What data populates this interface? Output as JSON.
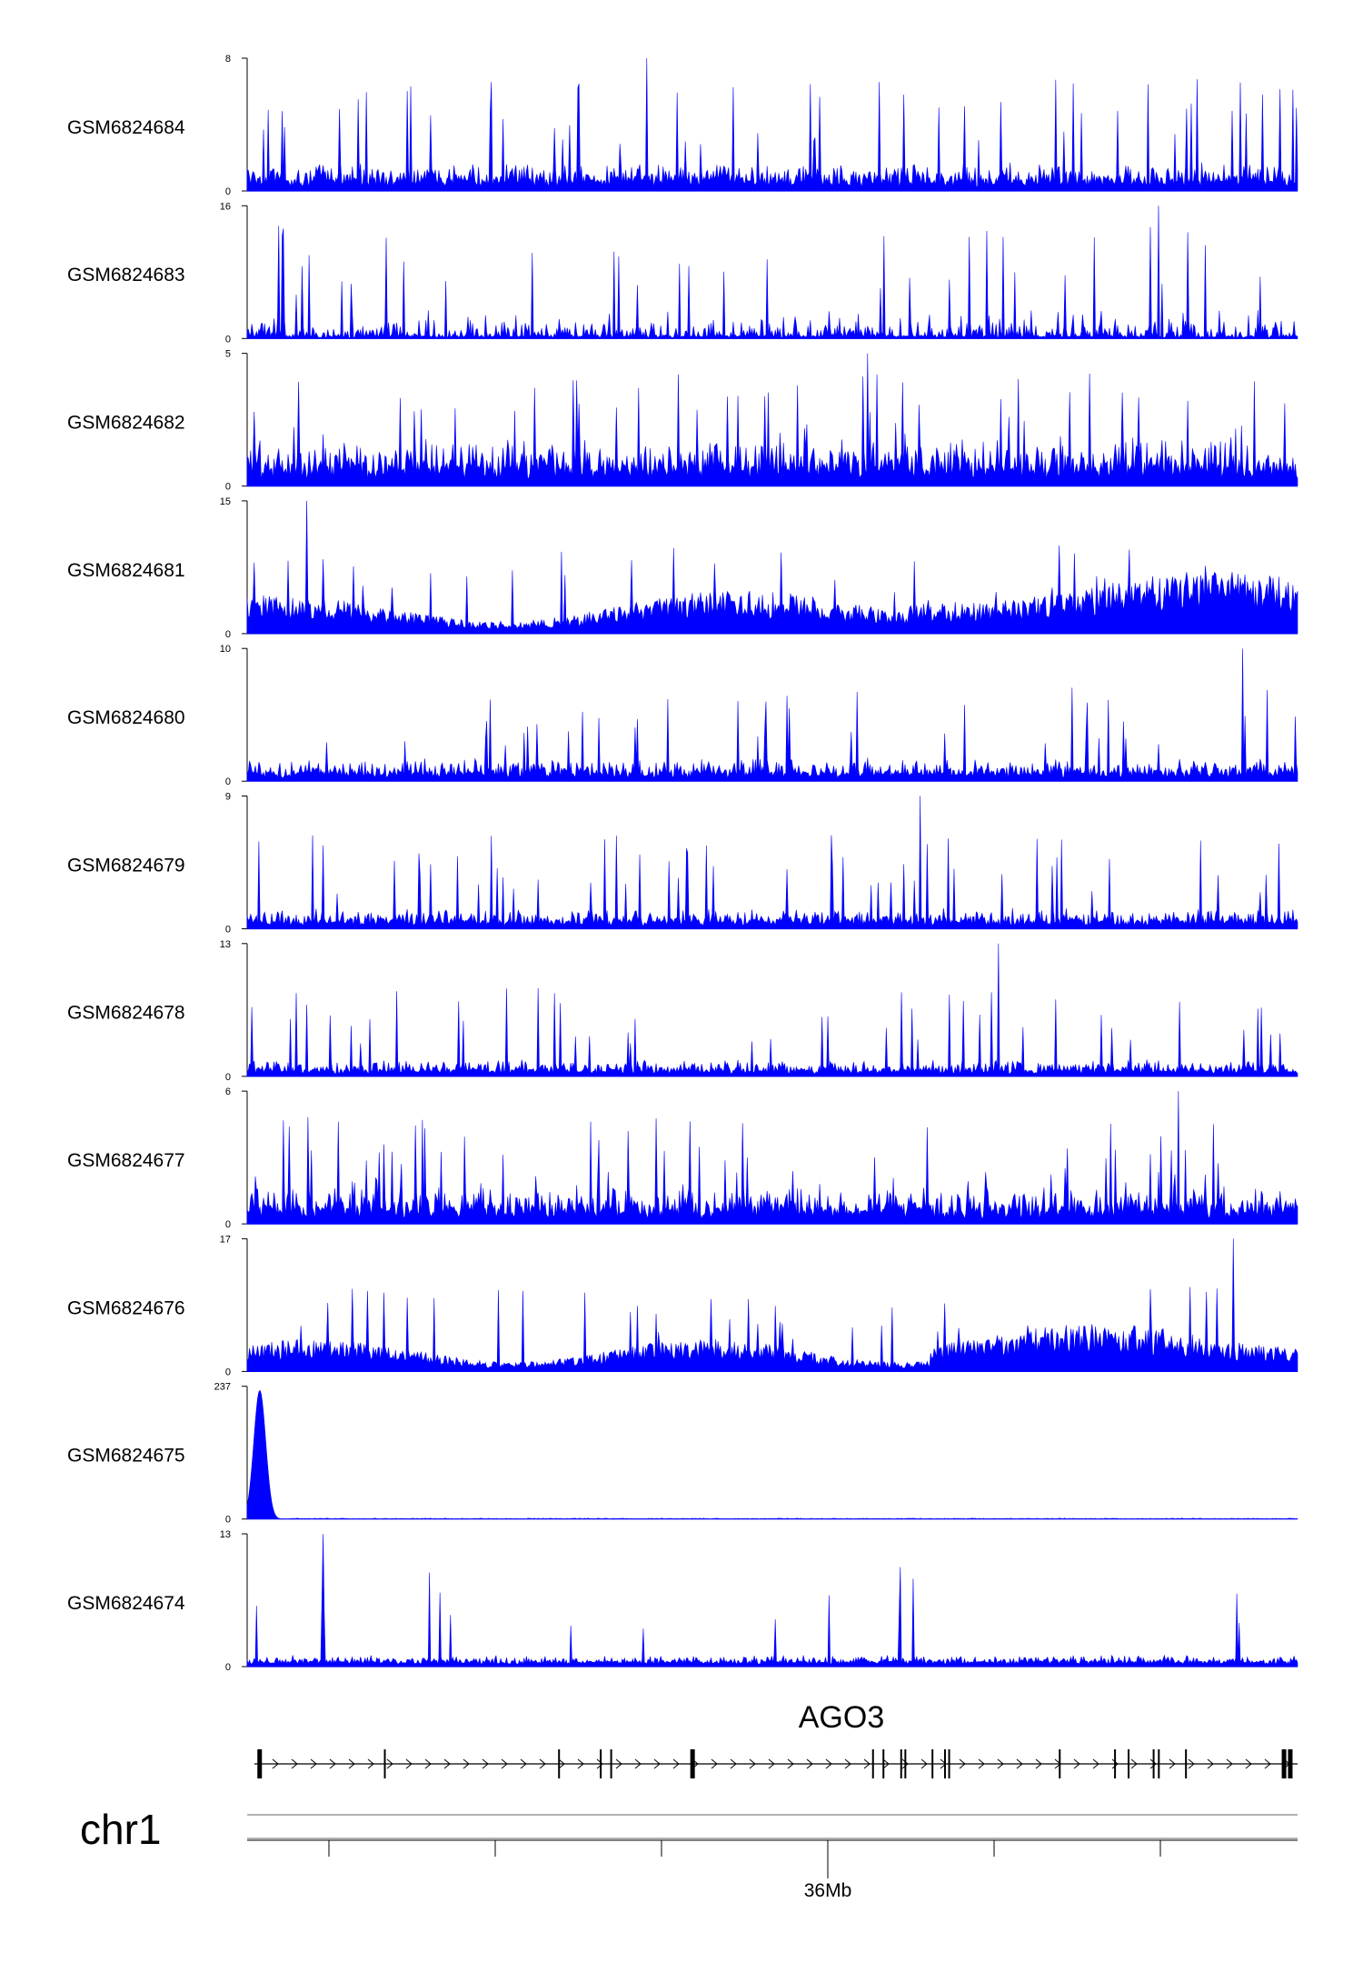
{
  "chart_data": {
    "type": "area",
    "color": "#0000ff",
    "chromosome": "chr1",
    "gene": {
      "name": "AGO3",
      "strand": "+"
    },
    "xaxis": {
      "tick_labels": [
        "36Mb"
      ]
    },
    "tracks": [
      {
        "name": "GSM6824684",
        "ymin": 0,
        "ymax": 8
      },
      {
        "name": "GSM6824683",
        "ymin": 0,
        "ymax": 16
      },
      {
        "name": "GSM6824682",
        "ymin": 0,
        "ymax": 5
      },
      {
        "name": "GSM6824681",
        "ymin": 0,
        "ymax": 15
      },
      {
        "name": "GSM6824680",
        "ymin": 0,
        "ymax": 10
      },
      {
        "name": "GSM6824679",
        "ymin": 0,
        "ymax": 9
      },
      {
        "name": "GSM6824678",
        "ymin": 0,
        "ymax": 13
      },
      {
        "name": "GSM6824677",
        "ymin": 0,
        "ymax": 6
      },
      {
        "name": "GSM6824676",
        "ymin": 0,
        "ymax": 17
      },
      {
        "name": "GSM6824675",
        "ymin": 0,
        "ymax": 237
      },
      {
        "name": "GSM6824674",
        "ymin": 0,
        "ymax": 13
      }
    ]
  }
}
